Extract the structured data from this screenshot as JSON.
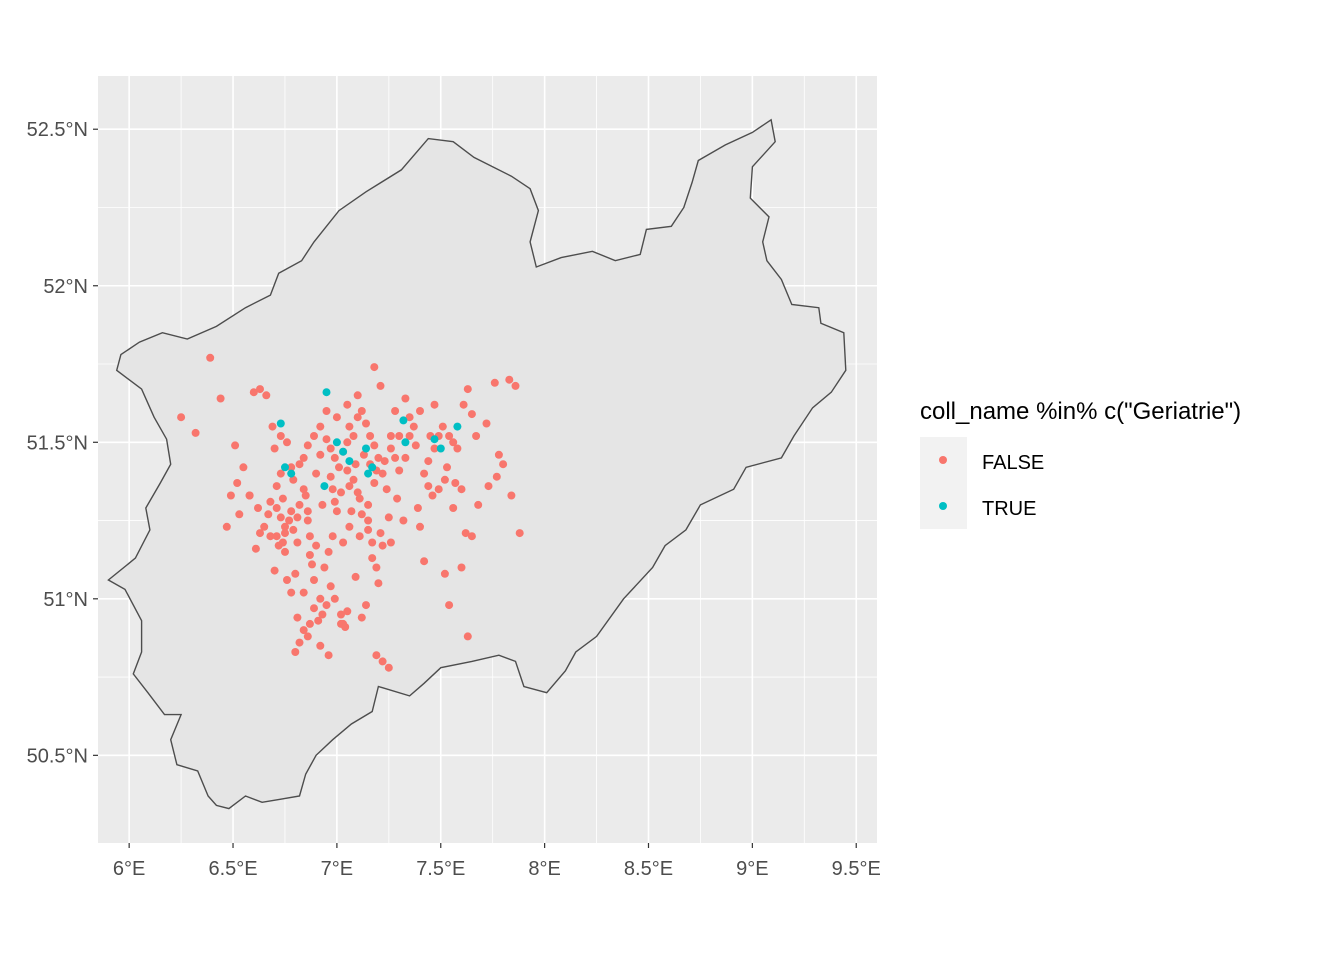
{
  "chart_data": {
    "type": "scatter",
    "title": "",
    "xlabel": "",
    "ylabel": "",
    "xlim": [
      5.85,
      9.6
    ],
    "ylim": [
      50.22,
      52.67
    ],
    "x_ticks": [
      6,
      6.5,
      7,
      7.5,
      8,
      8.5,
      9,
      9.5
    ],
    "x_tick_labels": [
      "6°E",
      "6.5°E",
      "7°E",
      "7.5°E",
      "8°E",
      "8.5°E",
      "9°E",
      "9.5°E"
    ],
    "y_ticks": [
      50.5,
      51,
      51.5,
      52,
      52.5
    ],
    "y_tick_labels": [
      "50.5°N",
      "51°N",
      "51.5°N",
      "52°N",
      "52.5°N"
    ],
    "grid": true,
    "legend": {
      "position": "right",
      "title": "coll_name %in% c(\"Geriatrie\")",
      "entries": [
        {
          "label": "FALSE",
          "color": "#F8766D"
        },
        {
          "label": "TRUE",
          "color": "#00BFC4"
        }
      ]
    },
    "region_outline": [
      [
        6.06,
        50.83
      ],
      [
        6.02,
        50.76
      ],
      [
        6.09,
        50.7
      ],
      [
        6.17,
        50.63
      ],
      [
        6.25,
        50.63
      ],
      [
        6.2,
        50.55
      ],
      [
        6.23,
        50.47
      ],
      [
        6.33,
        50.45
      ],
      [
        6.38,
        50.37
      ],
      [
        6.42,
        50.34
      ],
      [
        6.48,
        50.33
      ],
      [
        6.56,
        50.37
      ],
      [
        6.64,
        50.35
      ],
      [
        6.73,
        50.36
      ],
      [
        6.82,
        50.37
      ],
      [
        6.85,
        50.44
      ],
      [
        6.9,
        50.5
      ],
      [
        6.98,
        50.55
      ],
      [
        7.07,
        50.6
      ],
      [
        7.17,
        50.64
      ],
      [
        7.2,
        50.72
      ],
      [
        7.35,
        50.69
      ],
      [
        7.42,
        50.73
      ],
      [
        7.5,
        50.78
      ],
      [
        7.65,
        50.8
      ],
      [
        7.78,
        50.82
      ],
      [
        7.86,
        50.8
      ],
      [
        7.9,
        50.72
      ],
      [
        8.01,
        50.7
      ],
      [
        8.1,
        50.77
      ],
      [
        8.15,
        50.83
      ],
      [
        8.25,
        50.88
      ],
      [
        8.38,
        51.0
      ],
      [
        8.52,
        51.1
      ],
      [
        8.58,
        51.17
      ],
      [
        8.68,
        51.22
      ],
      [
        8.75,
        51.3
      ],
      [
        8.91,
        51.35
      ],
      [
        8.97,
        51.42
      ],
      [
        9.14,
        51.45
      ],
      [
        9.2,
        51.52
      ],
      [
        9.29,
        51.61
      ],
      [
        9.38,
        51.66
      ],
      [
        9.45,
        51.73
      ],
      [
        9.44,
        51.85
      ],
      [
        9.33,
        51.88
      ],
      [
        9.32,
        51.93
      ],
      [
        9.19,
        51.94
      ],
      [
        9.14,
        52.02
      ],
      [
        9.07,
        52.08
      ],
      [
        9.05,
        52.14
      ],
      [
        9.08,
        52.22
      ],
      [
        8.99,
        52.28
      ],
      [
        9.0,
        52.38
      ],
      [
        9.11,
        52.46
      ],
      [
        9.09,
        52.53
      ],
      [
        9.0,
        52.49
      ],
      [
        8.87,
        52.45
      ],
      [
        8.74,
        52.4
      ],
      [
        8.71,
        52.33
      ],
      [
        8.67,
        52.25
      ],
      [
        8.61,
        52.19
      ],
      [
        8.49,
        52.18
      ],
      [
        8.46,
        52.1
      ],
      [
        8.34,
        52.08
      ],
      [
        8.23,
        52.11
      ],
      [
        8.08,
        52.09
      ],
      [
        7.96,
        52.06
      ],
      [
        7.93,
        52.14
      ],
      [
        7.97,
        52.24
      ],
      [
        7.93,
        52.31
      ],
      [
        7.84,
        52.35
      ],
      [
        7.66,
        52.41
      ],
      [
        7.56,
        52.46
      ],
      [
        7.44,
        52.47
      ],
      [
        7.31,
        52.37
      ],
      [
        7.14,
        52.3
      ],
      [
        7.01,
        52.24
      ],
      [
        6.89,
        52.14
      ],
      [
        6.83,
        52.08
      ],
      [
        6.72,
        52.04
      ],
      [
        6.68,
        51.97
      ],
      [
        6.56,
        51.93
      ],
      [
        6.42,
        51.87
      ],
      [
        6.28,
        51.83
      ],
      [
        6.16,
        51.85
      ],
      [
        6.05,
        51.82
      ],
      [
        5.96,
        51.78
      ],
      [
        5.94,
        51.73
      ],
      [
        6.06,
        51.67
      ],
      [
        6.12,
        51.58
      ],
      [
        6.18,
        51.51
      ],
      [
        6.2,
        51.43
      ],
      [
        6.15,
        51.37
      ],
      [
        6.08,
        51.29
      ],
      [
        6.1,
        51.22
      ],
      [
        6.03,
        51.13
      ],
      [
        5.9,
        51.06
      ],
      [
        5.98,
        51.03
      ],
      [
        6.06,
        50.93
      ],
      [
        6.06,
        50.83
      ]
    ],
    "series": [
      {
        "name": "FALSE",
        "color": "#F8766D",
        "points": [
          [
            6.39,
            51.77
          ],
          [
            6.25,
            51.58
          ],
          [
            6.32,
            51.53
          ],
          [
            6.44,
            51.64
          ],
          [
            6.51,
            51.49
          ],
          [
            6.55,
            51.42
          ],
          [
            6.6,
            51.66
          ],
          [
            6.63,
            51.67
          ],
          [
            6.66,
            51.65
          ],
          [
            6.69,
            51.55
          ],
          [
            6.7,
            51.48
          ],
          [
            6.73,
            51.52
          ],
          [
            6.76,
            51.5
          ],
          [
            6.78,
            51.42
          ],
          [
            6.73,
            51.4
          ],
          [
            6.71,
            51.36
          ],
          [
            6.68,
            51.31
          ],
          [
            6.62,
            51.29
          ],
          [
            6.58,
            51.33
          ],
          [
            6.52,
            51.37
          ],
          [
            6.49,
            51.33
          ],
          [
            6.53,
            51.27
          ],
          [
            6.47,
            51.23
          ],
          [
            6.58,
            51.33
          ],
          [
            6.65,
            51.23
          ],
          [
            6.68,
            51.2
          ],
          [
            6.71,
            51.2
          ],
          [
            6.73,
            51.26
          ],
          [
            6.75,
            51.23
          ],
          [
            6.77,
            51.25
          ],
          [
            6.79,
            51.22
          ],
          [
            6.81,
            51.26
          ],
          [
            6.82,
            51.3
          ],
          [
            6.85,
            51.33
          ],
          [
            6.86,
            51.25
          ],
          [
            6.87,
            51.2
          ],
          [
            6.9,
            51.4
          ],
          [
            6.92,
            51.46
          ],
          [
            6.95,
            51.51
          ],
          [
            6.97,
            51.48
          ],
          [
            6.99,
            51.45
          ],
          [
            7.01,
            51.42
          ],
          [
            7.03,
            51.47
          ],
          [
            7.05,
            51.5
          ],
          [
            7.06,
            51.55
          ],
          [
            7.08,
            51.52
          ],
          [
            7.1,
            51.58
          ],
          [
            7.12,
            51.6
          ],
          [
            7.14,
            51.56
          ],
          [
            7.16,
            51.52
          ],
          [
            7.18,
            51.49
          ],
          [
            7.2,
            51.45
          ],
          [
            7.22,
            51.4
          ],
          [
            7.24,
            51.35
          ],
          [
            7.26,
            51.52
          ],
          [
            7.28,
            51.45
          ],
          [
            7.33,
            51.64
          ],
          [
            7.35,
            51.52
          ],
          [
            7.38,
            51.49
          ],
          [
            7.42,
            51.4
          ],
          [
            7.44,
            51.36
          ],
          [
            7.46,
            51.33
          ],
          [
            7.49,
            51.35
          ],
          [
            7.52,
            51.38
          ],
          [
            7.54,
            51.52
          ],
          [
            7.56,
            51.5
          ],
          [
            7.58,
            51.48
          ],
          [
            7.61,
            51.62
          ],
          [
            7.63,
            51.67
          ],
          [
            7.65,
            51.59
          ],
          [
            7.67,
            51.52
          ],
          [
            7.72,
            51.56
          ],
          [
            7.76,
            51.69
          ],
          [
            7.78,
            51.46
          ],
          [
            7.8,
            51.43
          ],
          [
            7.83,
            51.7
          ],
          [
            7.86,
            51.68
          ],
          [
            7.84,
            51.33
          ],
          [
            7.88,
            51.21
          ],
          [
            7.77,
            51.39
          ],
          [
            7.73,
            51.36
          ],
          [
            7.68,
            51.3
          ],
          [
            7.65,
            51.2
          ],
          [
            7.62,
            51.21
          ],
          [
            7.6,
            51.35
          ],
          [
            7.57,
            51.37
          ],
          [
            7.52,
            51.08
          ],
          [
            7.54,
            50.98
          ],
          [
            7.63,
            50.88
          ],
          [
            7.42,
            51.12
          ],
          [
            7.4,
            51.23
          ],
          [
            7.39,
            51.29
          ],
          [
            7.32,
            51.25
          ],
          [
            7.29,
            51.32
          ],
          [
            7.25,
            51.26
          ],
          [
            7.22,
            51.17
          ],
          [
            7.21,
            51.21
          ],
          [
            7.2,
            51.05
          ],
          [
            7.19,
            51.1
          ],
          [
            7.17,
            51.13
          ],
          [
            7.15,
            51.25
          ],
          [
            7.12,
            51.27
          ],
          [
            7.1,
            51.34
          ],
          [
            7.08,
            51.38
          ],
          [
            7.05,
            51.41
          ],
          [
            7.02,
            51.34
          ],
          [
            7.0,
            51.28
          ],
          [
            6.98,
            51.2
          ],
          [
            6.96,
            51.15
          ],
          [
            6.94,
            51.1
          ],
          [
            6.97,
            51.04
          ],
          [
            6.99,
            51.0
          ],
          [
            7.02,
            50.95
          ],
          [
            7.03,
            50.92
          ],
          [
            7.05,
            50.96
          ],
          [
            6.93,
            50.95
          ],
          [
            6.91,
            50.93
          ],
          [
            6.89,
            50.97
          ],
          [
            6.87,
            50.92
          ],
          [
            6.86,
            50.88
          ],
          [
            6.84,
            50.9
          ],
          [
            6.82,
            50.86
          ],
          [
            6.8,
            50.83
          ],
          [
            6.81,
            50.94
          ],
          [
            6.78,
            51.02
          ],
          [
            6.8,
            51.08
          ],
          [
            6.89,
            51.06
          ],
          [
            6.92,
            51.0
          ],
          [
            6.95,
            50.98
          ],
          [
            6.96,
            50.82
          ],
          [
            6.92,
            50.85
          ],
          [
            7.19,
            50.82
          ],
          [
            7.22,
            50.8
          ],
          [
            7.25,
            50.78
          ],
          [
            7.12,
            50.94
          ],
          [
            7.14,
            50.98
          ],
          [
            7.09,
            51.07
          ],
          [
            7.33,
            51.45
          ],
          [
            7.35,
            51.58
          ],
          [
            7.28,
            51.6
          ],
          [
            7.18,
            51.74
          ],
          [
            7.21,
            51.68
          ],
          [
            7.1,
            51.65
          ],
          [
            7.05,
            51.62
          ],
          [
            7.0,
            51.58
          ],
          [
            6.95,
            51.6
          ],
          [
            6.92,
            51.55
          ],
          [
            6.89,
            51.52
          ],
          [
            6.86,
            51.49
          ],
          [
            6.84,
            51.45
          ],
          [
            6.82,
            51.43
          ],
          [
            6.79,
            51.38
          ],
          [
            6.74,
            51.32
          ],
          [
            6.71,
            51.29
          ],
          [
            6.67,
            51.27
          ],
          [
            6.63,
            51.21
          ],
          [
            6.61,
            51.16
          ],
          [
            6.72,
            51.17
          ],
          [
            6.75,
            51.15
          ],
          [
            6.87,
            51.14
          ],
          [
            6.9,
            51.17
          ],
          [
            7.06,
            51.23
          ],
          [
            7.07,
            51.28
          ],
          [
            7.11,
            51.32
          ],
          [
            7.15,
            51.3
          ],
          [
            7.18,
            51.37
          ],
          [
            7.23,
            51.44
          ],
          [
            7.26,
            51.48
          ],
          [
            7.3,
            51.52
          ],
          [
            7.37,
            51.55
          ],
          [
            7.4,
            51.6
          ],
          [
            7.44,
            51.44
          ],
          [
            7.47,
            51.48
          ],
          [
            7.49,
            51.52
          ],
          [
            7.51,
            51.55
          ],
          [
            7.53,
            51.42
          ],
          [
            7.56,
            51.29
          ],
          [
            7.6,
            51.1
          ],
          [
            7.45,
            51.52
          ],
          [
            7.47,
            51.62
          ],
          [
            7.3,
            51.41
          ],
          [
            7.26,
            51.18
          ],
          [
            7.03,
            51.18
          ],
          [
            6.98,
            51.35
          ],
          [
            6.97,
            51.39
          ],
          [
            6.84,
            51.35
          ],
          [
            6.78,
            51.28
          ],
          [
            6.75,
            51.21
          ],
          [
            6.74,
            51.18
          ],
          [
            6.7,
            51.09
          ],
          [
            6.81,
            51.18
          ],
          [
            6.86,
            51.28
          ],
          [
            6.93,
            51.3
          ],
          [
            7.13,
            51.46
          ],
          [
            7.16,
            51.43
          ],
          [
            7.19,
            51.41
          ],
          [
            7.09,
            51.43
          ],
          [
            7.06,
            51.36
          ],
          [
            6.99,
            51.31
          ],
          [
            7.11,
            51.2
          ],
          [
            7.15,
            51.22
          ],
          [
            7.17,
            51.18
          ],
          [
            7.02,
            50.92
          ],
          [
            7.04,
            50.91
          ],
          [
            6.88,
            51.11
          ],
          [
            6.84,
            51.02
          ],
          [
            6.76,
            51.06
          ]
        ]
      },
      {
        "name": "TRUE",
        "color": "#00BFC4",
        "points": [
          [
            6.95,
            51.66
          ],
          [
            6.73,
            51.56
          ],
          [
            6.75,
            51.42
          ],
          [
            6.78,
            51.4
          ],
          [
            6.94,
            51.36
          ],
          [
            7.0,
            51.5
          ],
          [
            7.03,
            51.47
          ],
          [
            7.06,
            51.44
          ],
          [
            7.14,
            51.48
          ],
          [
            7.15,
            51.4
          ],
          [
            7.17,
            51.42
          ],
          [
            7.32,
            51.57
          ],
          [
            7.33,
            51.5
          ],
          [
            7.47,
            51.51
          ],
          [
            7.5,
            51.48
          ],
          [
            7.58,
            51.55
          ]
        ]
      }
    ]
  }
}
